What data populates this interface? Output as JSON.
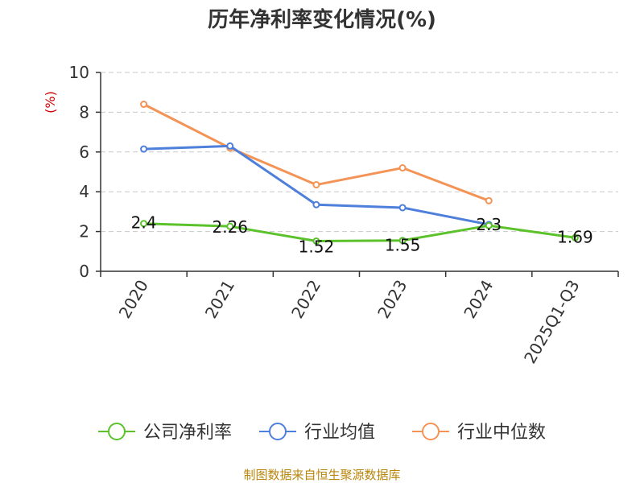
{
  "chart_data": {
    "type": "line",
    "title": "历年净利率变化情况(%)",
    "ylabel": "(%)",
    "xlabel": "",
    "categories": [
      "2020",
      "2021",
      "2022",
      "2023",
      "2024",
      "2025Q1-Q3"
    ],
    "ylim": [
      0,
      10
    ],
    "yticks": [
      "0",
      "2",
      "4",
      "6",
      "8",
      "10"
    ],
    "grid": true,
    "legend_position": "bottom",
    "series": [
      {
        "name": "公司净利率",
        "color": "#5cc22b",
        "values": [
          2.4,
          2.26,
          1.52,
          1.55,
          2.3,
          1.69
        ],
        "labels": [
          "2.4",
          "2.26",
          "1.52",
          "1.55",
          "2.3",
          "1.69"
        ]
      },
      {
        "name": "行业均值",
        "color": "#4d7fdb",
        "values": [
          6.15,
          6.3,
          3.35,
          3.2,
          2.35,
          null
        ]
      },
      {
        "name": "行业中位数",
        "color": "#f49356",
        "values": [
          8.4,
          6.2,
          4.35,
          5.2,
          3.55,
          null
        ]
      }
    ],
    "source": "制图数据来自恒生聚源数据库"
  }
}
